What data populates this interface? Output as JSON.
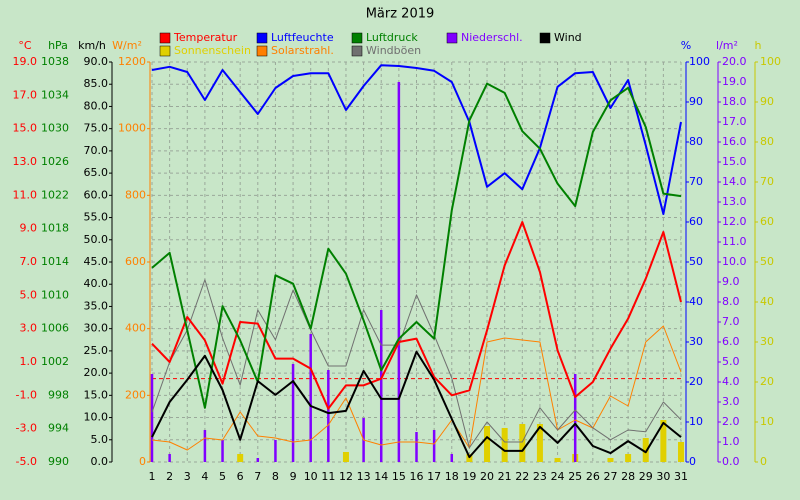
{
  "chart_data": {
    "type": "weather",
    "title": "März 2019",
    "grid": true,
    "categories": [
      "1",
      "2",
      "3",
      "4",
      "5",
      "6",
      "7",
      "8",
      "9",
      "10",
      "11",
      "12",
      "13",
      "14",
      "15",
      "16",
      "17",
      "18",
      "19",
      "20",
      "21",
      "22",
      "23",
      "24",
      "25",
      "26",
      "27",
      "28",
      "29",
      "30",
      "31"
    ],
    "axes": [
      {
        "unit": "°C",
        "color": "#ff0000",
        "lim": [
          -5,
          19
        ],
        "ticks": [
          {
            "value": -5,
            "label": "-5.0"
          },
          {
            "value": -3,
            "label": "-3.0"
          },
          {
            "value": -1,
            "label": "-1.0"
          },
          {
            "value": 1,
            "label": "1.0"
          },
          {
            "value": 3,
            "label": "3.0"
          },
          {
            "value": 5,
            "label": "5.0"
          },
          {
            "value": 7,
            "label": "7.0"
          },
          {
            "value": 9,
            "label": "9.0"
          },
          {
            "value": 11,
            "label": "11.0"
          },
          {
            "value": 13,
            "label": "13.0"
          },
          {
            "value": 15,
            "label": "15.0"
          },
          {
            "value": 17,
            "label": "17.0"
          },
          {
            "value": 19,
            "label": "19.0"
          }
        ]
      },
      {
        "unit": "hPa",
        "color": "#008000",
        "lim": [
          990,
          1038
        ],
        "ticks": [
          990,
          994,
          998,
          1002,
          1006,
          1010,
          1014,
          1018,
          1022,
          1026,
          1030,
          1034,
          1038
        ]
      },
      {
        "unit": "km/h",
        "color": "#000000",
        "lim": [
          0,
          90
        ],
        "ticks": [
          {
            "value": 0,
            "label": "0.0"
          },
          {
            "value": 5,
            "label": "5.0"
          },
          {
            "value": 10,
            "label": "10.0"
          },
          {
            "value": 15,
            "label": "15.0"
          },
          {
            "value": 20,
            "label": "20.0"
          },
          {
            "value": 25,
            "label": "25.0"
          },
          {
            "value": 30,
            "label": "30.0"
          },
          {
            "value": 35,
            "label": "35.0"
          },
          {
            "value": 40,
            "label": "40.0"
          },
          {
            "value": 45,
            "label": "45.0"
          },
          {
            "value": 50,
            "label": "50.0"
          },
          {
            "value": 55,
            "label": "55.0"
          },
          {
            "value": 60,
            "label": "60.0"
          },
          {
            "value": 65,
            "label": "65.0"
          },
          {
            "value": 70,
            "label": "70.0"
          },
          {
            "value": 75,
            "label": "75.0"
          },
          {
            "value": 80,
            "label": "80.0"
          },
          {
            "value": 85,
            "label": "85.0"
          },
          {
            "value": 90,
            "label": "90.0"
          }
        ]
      },
      {
        "unit": "W/m²",
        "color": "#ff8000",
        "lim": [
          0,
          1200
        ],
        "ticks": [
          0,
          200,
          400,
          600,
          800,
          1000,
          1200
        ]
      },
      {
        "unit": "%",
        "color": "#0000ff",
        "lim": [
          0,
          100
        ],
        "ticks": [
          0,
          10,
          20,
          30,
          40,
          50,
          60,
          70,
          80,
          90,
          100
        ]
      },
      {
        "unit": "l/m²",
        "color": "#8000ff",
        "lim": [
          0,
          20
        ],
        "ticks": [
          {
            "value": 0,
            "label": "0.0"
          },
          {
            "value": 1,
            "label": "1.0"
          },
          {
            "value": 2,
            "label": "2.0"
          },
          {
            "value": 3,
            "label": "3.0"
          },
          {
            "value": 4,
            "label": "4.0"
          },
          {
            "value": 5,
            "label": "5.0"
          },
          {
            "value": 6,
            "label": "6.0"
          },
          {
            "value": 7,
            "label": "7.0"
          },
          {
            "value": 8,
            "label": "8.0"
          },
          {
            "value": 9,
            "label": "9.0"
          },
          {
            "value": 10,
            "label": "10.0"
          },
          {
            "value": 11,
            "label": "11.0"
          },
          {
            "value": 12,
            "label": "12.0"
          },
          {
            "value": 13,
            "label": "13.0"
          },
          {
            "value": 14,
            "label": "14.0"
          },
          {
            "value": 15,
            "label": "15.0"
          },
          {
            "value": 16,
            "label": "16.0"
          },
          {
            "value": 17,
            "label": "17.0"
          },
          {
            "value": 18,
            "label": "18.0"
          },
          {
            "value": 19,
            "label": "19.0"
          },
          {
            "value": 20,
            "label": "20.0"
          }
        ]
      },
      {
        "unit": "h",
        "color": "#c8c800",
        "lim": [
          0,
          100
        ],
        "ticks": [
          0,
          10,
          20,
          30,
          40,
          50,
          60,
          70,
          80,
          90,
          100
        ]
      }
    ],
    "series": [
      {
        "name": "Temperatur",
        "color": "#ff0000",
        "axis": "°C",
        "kind": "line",
        "values": [
          2.1,
          1.0,
          3.7,
          2.3,
          -0.3,
          3.4,
          3.3,
          1.2,
          1.2,
          0.6,
          -1.8,
          -0.4,
          -0.4,
          0.0,
          2.2,
          2.4,
          0.1,
          -1.0,
          -0.7,
          2.9,
          6.8,
          9.4,
          6.4,
          1.7,
          -1.1,
          -0.2,
          1.8,
          3.6,
          6.0,
          8.8,
          4.6
        ]
      },
      {
        "name": "Sonnenschein",
        "color": "#e0d000",
        "axis": "h",
        "kind": "bar",
        "values": [
          0,
          0,
          0,
          0,
          0,
          2,
          0,
          0,
          0,
          0,
          0,
          2.5,
          0,
          0,
          0,
          0,
          0,
          0,
          2,
          9,
          8.5,
          9.5,
          9.5,
          1,
          2,
          0,
          1,
          2,
          6,
          10.5,
          5
        ]
      },
      {
        "name": "Luftfeuchte",
        "color": "#0000ff",
        "axis": "%",
        "kind": "line",
        "values": [
          98,
          98.8,
          97.5,
          90.5,
          98,
          92.5,
          87,
          93.5,
          96.5,
          97.2,
          97.2,
          88,
          94,
          99.2,
          99,
          98.5,
          97.8,
          95,
          85,
          68.8,
          72.2,
          68.2,
          78.5,
          93.8,
          97.2,
          97.5,
          88.5,
          95.5,
          79.2,
          62,
          85
        ]
      },
      {
        "name": "Solarstrahl.",
        "color": "#ff8000",
        "axis": "W/m²",
        "kind": "thin",
        "values": [
          66,
          60,
          36,
          72,
          66,
          150,
          78,
          72,
          60,
          66,
          111,
          192,
          66,
          51,
          60,
          60,
          54,
          126,
          42,
          360,
          372,
          366,
          360,
          96,
          126,
          102,
          198,
          168,
          360,
          408,
          270
        ]
      },
      {
        "name": "Luftdruck",
        "color": "#008000",
        "axis": "hPa",
        "kind": "line",
        "values": [
          1013.3,
          1015.1,
          1005.8,
          996.5,
          1008.7,
          1004.6,
          999.6,
          1012.4,
          1011.4,
          1006,
          1015.6,
          1012.6,
          1007,
          1001,
          1004.8,
          1006.8,
          1004.8,
          1020.2,
          1031,
          1035.4,
          1034.3,
          1029.7,
          1027.6,
          1023.4,
          1020.7,
          1029.6,
          1033.4,
          1034.9,
          1030.2,
          1022.2,
          1021.9
        ]
      },
      {
        "name": "Windböen",
        "color": "#707070",
        "axis": "km/h",
        "kind": "thin",
        "values": [
          11.2,
          22.5,
          29.7,
          41,
          27.9,
          17.3,
          34.2,
          27.5,
          38.7,
          29.7,
          21.6,
          21.6,
          34.2,
          26.3,
          26.3,
          37.6,
          28.6,
          18.9,
          3.2,
          9,
          4.5,
          4.5,
          12.2,
          7.2,
          11.7,
          7.7,
          5,
          7.2,
          6.8,
          13.5,
          9.5
        ]
      },
      {
        "name": "Niederschl.",
        "color": "#8000ff",
        "axis": "l/m²",
        "kind": "narrow",
        "values": [
          4.4,
          0.4,
          0,
          1.6,
          1.1,
          0,
          0.2,
          1.1,
          4.9,
          6.4,
          4.6,
          0,
          2.2,
          7.6,
          19.0,
          1.5,
          1.6,
          0.4,
          0,
          0,
          0,
          0,
          0,
          0,
          4.4,
          0,
          0,
          0,
          0,
          0,
          0
        ]
      },
      {
        "name": "Wind",
        "color": "#000000",
        "axis": "km/h",
        "kind": "line",
        "values": [
          5.6,
          13.5,
          18.5,
          23.9,
          16.2,
          5.0,
          18.2,
          15.1,
          18.2,
          12.6,
          11.0,
          11.5,
          20.5,
          14.2,
          14.2,
          24.8,
          18.5,
          9.7,
          1.1,
          5.6,
          2.5,
          2.5,
          7.9,
          4.3,
          8.6,
          3.6,
          2.0,
          4.7,
          2.2,
          8.8,
          5.6
        ]
      }
    ]
  }
}
